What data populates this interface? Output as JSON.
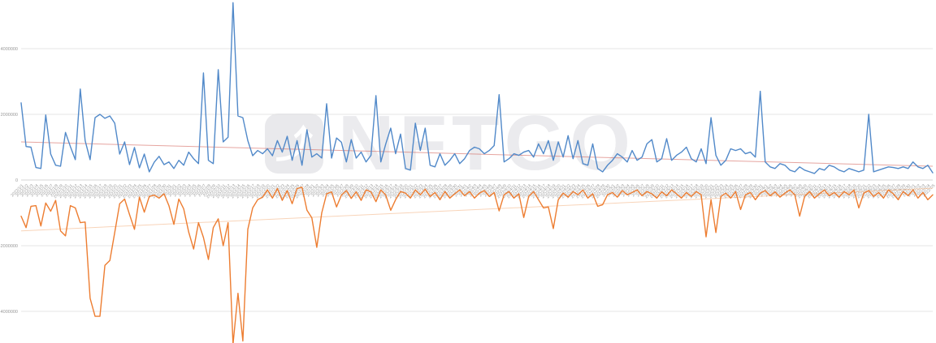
{
  "watermark": {
    "text": "NFTGO",
    "icon": "arrow-up-right-icon"
  },
  "colors": {
    "blue_series": "#5189c9",
    "orange_series": "#ed7d31",
    "blue_trendline": "rgba(205,75,65,0.5)",
    "orange_trendline": "rgba(240,160,100,0.45)",
    "gridline": "#e4e4e4",
    "zero_axis": "#d6d6d6",
    "tick_label": "#999999",
    "watermark_gray": "#ebebee"
  },
  "chart_data": {
    "type": "line",
    "title": "",
    "xlabel": "",
    "ylabel": "",
    "legend": "none",
    "grid": true,
    "values_unit": "axis values are in raw units; series values below are in millions (multiply by 1000000)",
    "ylim": [
      -5.0,
      5.5
    ],
    "y_ticks": {
      "values": [
        4,
        2,
        0,
        -2,
        -4
      ],
      "labels": [
        "4000000",
        "2000000",
        "0",
        "-2000000",
        "-4000000"
      ]
    },
    "categories": [
      "2022/1/1",
      "2022/1/2",
      "2022/1/3",
      "2022/1/4",
      "2022/1/5",
      "2022/1/6",
      "2022/1/7",
      "2022/1/8",
      "2022/1/9",
      "2022/1/10",
      "2022/1/11",
      "2022/1/12",
      "2022/1/13",
      "2022/1/14",
      "2022/1/15",
      "2022/1/16",
      "2022/1/17",
      "2022/1/18",
      "2022/1/19",
      "2022/1/20",
      "2022/1/21",
      "2022/1/22",
      "2022/1/23",
      "2022/1/24",
      "2022/1/25",
      "2022/1/26",
      "2022/1/27",
      "2022/1/28",
      "2022/1/29",
      "2022/1/30",
      "2022/1/31",
      "2022/2/1",
      "2022/2/2",
      "2022/2/3",
      "2022/2/4",
      "2022/2/5",
      "2022/2/6",
      "2022/2/7",
      "2022/2/8",
      "2022/2/9",
      "2022/2/10",
      "2022/2/11",
      "2022/2/12",
      "2022/2/13",
      "2022/2/14",
      "2022/2/15",
      "2022/2/16",
      "2022/2/17",
      "2022/2/18",
      "2022/2/19",
      "2022/2/20",
      "2022/2/21",
      "2022/2/22",
      "2022/2/23",
      "2022/2/24",
      "2022/2/25",
      "2022/2/26",
      "2022/2/27",
      "2022/2/28",
      "2022/3/1",
      "2022/3/2",
      "2022/3/3",
      "2022/3/4",
      "2022/3/5",
      "2022/3/6",
      "2022/3/7",
      "2022/3/8",
      "2022/3/9",
      "2022/3/10",
      "2022/3/11",
      "2022/3/12",
      "2022/3/13",
      "2022/3/14",
      "2022/3/15",
      "2022/3/16",
      "2022/3/17",
      "2022/3/18",
      "2022/3/19",
      "2022/3/20",
      "2022/3/21",
      "2022/3/22",
      "2022/3/23",
      "2022/3/24",
      "2022/3/25",
      "2022/3/26",
      "2022/3/27",
      "2022/3/28",
      "2022/3/29",
      "2022/3/30",
      "2022/3/31",
      "2022/4/1",
      "2022/4/2",
      "2022/4/3",
      "2022/4/4",
      "2022/4/5",
      "2022/4/6",
      "2022/4/7",
      "2022/4/8",
      "2022/4/9",
      "2022/4/10",
      "2022/4/11",
      "2022/4/12",
      "2022/4/13",
      "2022/4/14",
      "2022/4/15",
      "2022/4/16",
      "2022/4/17",
      "2022/4/18",
      "2022/4/19",
      "2022/4/20",
      "2022/4/21",
      "2022/4/22",
      "2022/4/23",
      "2022/4/24",
      "2022/4/25",
      "2022/4/26",
      "2022/4/27",
      "2022/4/28",
      "2022/4/29",
      "2022/4/30",
      "2022/5/1",
      "2022/5/2",
      "2022/5/3",
      "2022/5/4",
      "2022/5/5",
      "2022/5/6",
      "2022/5/7",
      "2022/5/8",
      "2022/5/9",
      "2022/5/10",
      "2022/5/11",
      "2022/5/12",
      "2022/5/13",
      "2022/5/14",
      "2022/5/15",
      "2022/5/16",
      "2022/5/17",
      "2022/5/18",
      "2022/5/19",
      "2022/5/20",
      "2022/5/21",
      "2022/5/22",
      "2022/5/23",
      "2022/5/24",
      "2022/5/25",
      "2022/5/26",
      "2022/5/27",
      "2022/5/28",
      "2022/5/29",
      "2022/5/30",
      "2022/5/31",
      "2022/6/1",
      "2022/6/2",
      "2022/6/3",
      "2022/6/4",
      "2022/6/5",
      "2022/6/6",
      "2022/6/7",
      "2022/6/8",
      "2022/6/9",
      "2022/6/10",
      "2022/6/11",
      "2022/6/12",
      "2022/6/13",
      "2022/6/14",
      "2022/6/15",
      "2022/6/16",
      "2022/6/17",
      "2022/6/18",
      "2022/6/19",
      "2022/6/20",
      "2022/6/21",
      "2022/6/22",
      "2022/6/23",
      "2022/6/24",
      "2022/6/25",
      "2022/6/26",
      "2022/6/27",
      "2022/6/28",
      "2022/6/29",
      "2022/6/30",
      "2022/7/1",
      "2022/7/2",
      "2022/7/3",
      "2022/7/4",
      "2022/7/5"
    ],
    "series": [
      {
        "name": "blue-series",
        "color": "#5189c9",
        "values": [
          2.35,
          1.02,
          1.0,
          0.38,
          0.35,
          1.98,
          0.79,
          0.45,
          0.42,
          1.45,
          1.02,
          0.62,
          2.77,
          1.2,
          0.62,
          1.9,
          2.0,
          1.88,
          1.95,
          1.73,
          0.79,
          1.16,
          0.47,
          0.99,
          0.37,
          0.79,
          0.25,
          0.54,
          0.72,
          0.47,
          0.55,
          0.35,
          0.6,
          0.45,
          0.85,
          0.65,
          0.5,
          3.26,
          0.6,
          0.5,
          3.36,
          1.16,
          1.3,
          5.4,
          1.95,
          1.9,
          1.2,
          0.74,
          0.9,
          0.8,
          0.95,
          0.74,
          1.2,
          0.85,
          1.33,
          0.6,
          1.2,
          0.45,
          1.53,
          0.7,
          0.8,
          0.67,
          2.32,
          0.67,
          1.28,
          1.15,
          0.55,
          1.23,
          0.67,
          0.85,
          0.55,
          0.75,
          2.57,
          0.55,
          1.1,
          1.58,
          0.8,
          1.4,
          0.35,
          0.3,
          1.73,
          0.9,
          1.58,
          0.45,
          0.4,
          0.8,
          0.45,
          0.6,
          0.8,
          0.5,
          0.65,
          0.9,
          1.0,
          0.95,
          0.8,
          0.9,
          1.05,
          2.6,
          0.55,
          0.65,
          0.8,
          0.75,
          0.85,
          0.9,
          0.7,
          1.1,
          0.8,
          1.2,
          0.6,
          1.16,
          0.7,
          1.35,
          0.65,
          1.2,
          0.5,
          0.45,
          1.1,
          0.35,
          0.25,
          0.45,
          0.6,
          0.8,
          0.7,
          0.55,
          0.9,
          0.6,
          0.7,
          1.1,
          1.23,
          0.55,
          0.65,
          1.26,
          0.6,
          0.75,
          0.85,
          1.0,
          0.65,
          0.55,
          0.95,
          0.5,
          1.9,
          0.75,
          0.45,
          0.6,
          0.95,
          0.9,
          0.95,
          0.8,
          0.85,
          0.7,
          2.7,
          0.55,
          0.4,
          0.35,
          0.5,
          0.45,
          0.3,
          0.25,
          0.4,
          0.3,
          0.25,
          0.2,
          0.35,
          0.3,
          0.45,
          0.4,
          0.3,
          0.25,
          0.35,
          0.3,
          0.25,
          0.3,
          2.0,
          0.25,
          0.3,
          0.35,
          0.4,
          0.38,
          0.35,
          0.4,
          0.35,
          0.55,
          0.4,
          0.35,
          0.45,
          0.22
        ]
      },
      {
        "name": "orange-series",
        "color": "#ed7d31",
        "values": [
          -1.1,
          -1.45,
          -0.8,
          -0.78,
          -1.4,
          -0.7,
          -0.95,
          -0.62,
          -1.55,
          -1.7,
          -0.78,
          -0.85,
          -1.3,
          -1.28,
          -3.6,
          -4.15,
          -4.15,
          -2.6,
          -2.45,
          -1.6,
          -0.72,
          -0.58,
          -1.05,
          -1.5,
          -0.52,
          -0.98,
          -0.5,
          -0.46,
          -0.55,
          -0.42,
          -0.78,
          -1.35,
          -0.58,
          -0.88,
          -1.58,
          -2.1,
          -1.3,
          -1.75,
          -2.42,
          -1.45,
          -1.18,
          -2.0,
          -1.3,
          -5.0,
          -3.45,
          -4.9,
          -1.5,
          -0.85,
          -0.6,
          -0.52,
          -0.3,
          -0.55,
          -0.26,
          -0.62,
          -0.32,
          -0.72,
          -0.26,
          -0.22,
          -0.92,
          -1.15,
          -2.05,
          -1.0,
          -0.42,
          -0.36,
          -0.82,
          -0.46,
          -0.32,
          -0.56,
          -0.36,
          -0.62,
          -0.3,
          -0.36,
          -0.66,
          -0.3,
          -0.46,
          -0.92,
          -0.6,
          -0.35,
          -0.4,
          -0.55,
          -0.3,
          -0.45,
          -0.28,
          -0.5,
          -0.38,
          -0.6,
          -0.35,
          -0.55,
          -0.42,
          -0.3,
          -0.48,
          -0.35,
          -0.55,
          -0.4,
          -0.32,
          -0.5,
          -0.38,
          -0.94,
          -0.45,
          -0.35,
          -0.55,
          -0.42,
          -1.14,
          -0.5,
          -0.35,
          -0.6,
          -0.85,
          -0.82,
          -1.48,
          -0.6,
          -0.4,
          -0.52,
          -0.35,
          -0.45,
          -0.3,
          -0.55,
          -0.42,
          -0.8,
          -0.75,
          -0.45,
          -0.38,
          -0.52,
          -0.32,
          -0.45,
          -0.38,
          -0.3,
          -0.48,
          -0.35,
          -0.42,
          -0.55,
          -0.36,
          -0.48,
          -0.3,
          -0.42,
          -0.55,
          -0.38,
          -0.5,
          -0.35,
          -0.45,
          -1.73,
          -0.6,
          -1.6,
          -0.5,
          -0.4,
          -0.55,
          -0.35,
          -0.9,
          -0.45,
          -0.38,
          -0.6,
          -0.4,
          -0.32,
          -0.48,
          -0.36,
          -0.52,
          -0.4,
          -0.3,
          -0.45,
          -1.1,
          -0.5,
          -0.35,
          -0.55,
          -0.42,
          -0.3,
          -0.48,
          -0.38,
          -0.52,
          -0.35,
          -0.45,
          -0.3,
          -0.85,
          -0.4,
          -0.32,
          -0.5,
          -0.38,
          -0.55,
          -0.3,
          -0.42,
          -0.6,
          -0.35,
          -0.48,
          -0.3,
          -0.55,
          -0.38,
          -0.6,
          -0.45
        ]
      }
    ],
    "trendlines": [
      {
        "series": "blue-series",
        "start": 1.16,
        "end": 0.42,
        "color": "rgba(205,75,65,0.5)"
      },
      {
        "series": "orange-series",
        "start": -1.55,
        "end": -0.25,
        "color": "rgba(240,160,100,0.45)"
      }
    ]
  }
}
